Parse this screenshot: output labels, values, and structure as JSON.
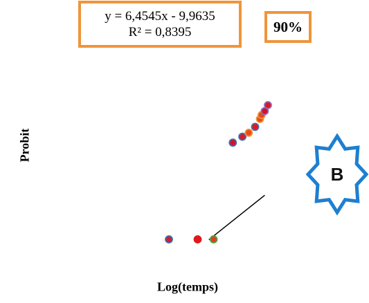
{
  "equation": {
    "line1": "y = 6,4545x - 9,9635",
    "line2": "R² = 0,8395"
  },
  "percentage": "90%",
  "badge_letter": "B",
  "colors": {
    "box_border": "#f0943a",
    "badge_border": "#1e7fd0",
    "trend_line": "#000000"
  },
  "chart_data": {
    "type": "scatter",
    "xlabel": "Log(temps)",
    "ylabel": "Probit",
    "ylim": [
      0,
      10
    ],
    "trendline": {
      "slope": 6.4545,
      "intercept": -9.9635
    },
    "points": [
      {
        "x": 1.6,
        "y": 2.0,
        "fill": "#d21f26",
        "stroke": "#3b6fb8"
      },
      {
        "x": 1.78,
        "y": 2.0,
        "fill": "#e0171c",
        "stroke": "#e0171c"
      },
      {
        "x": 1.88,
        "y": 2.0,
        "fill": "#d8431c",
        "stroke": "#5ca04a"
      },
      {
        "x": 2.0,
        "y": 6.9,
        "fill": "#d2142a",
        "stroke": "#3b6fb8"
      },
      {
        "x": 2.06,
        "y": 7.2,
        "fill": "#cf1f2a",
        "stroke": "#3b6fb8"
      },
      {
        "x": 2.1,
        "y": 7.4,
        "fill": "#f04a1c",
        "stroke": "#f0943a"
      },
      {
        "x": 2.14,
        "y": 7.7,
        "fill": "#e4181c",
        "stroke": "#3b6fb8"
      },
      {
        "x": 2.17,
        "y": 8.1,
        "fill": "#ec4a1c",
        "stroke": "#f0943a"
      },
      {
        "x": 2.18,
        "y": 8.3,
        "fill": "#e64a1c",
        "stroke": "#f0943a"
      },
      {
        "x": 2.2,
        "y": 8.5,
        "fill": "#d2142a",
        "stroke": "#8a6fc8"
      },
      {
        "x": 2.22,
        "y": 8.8,
        "fill": "#e0171c",
        "stroke": "#8a6fc8"
      }
    ]
  }
}
